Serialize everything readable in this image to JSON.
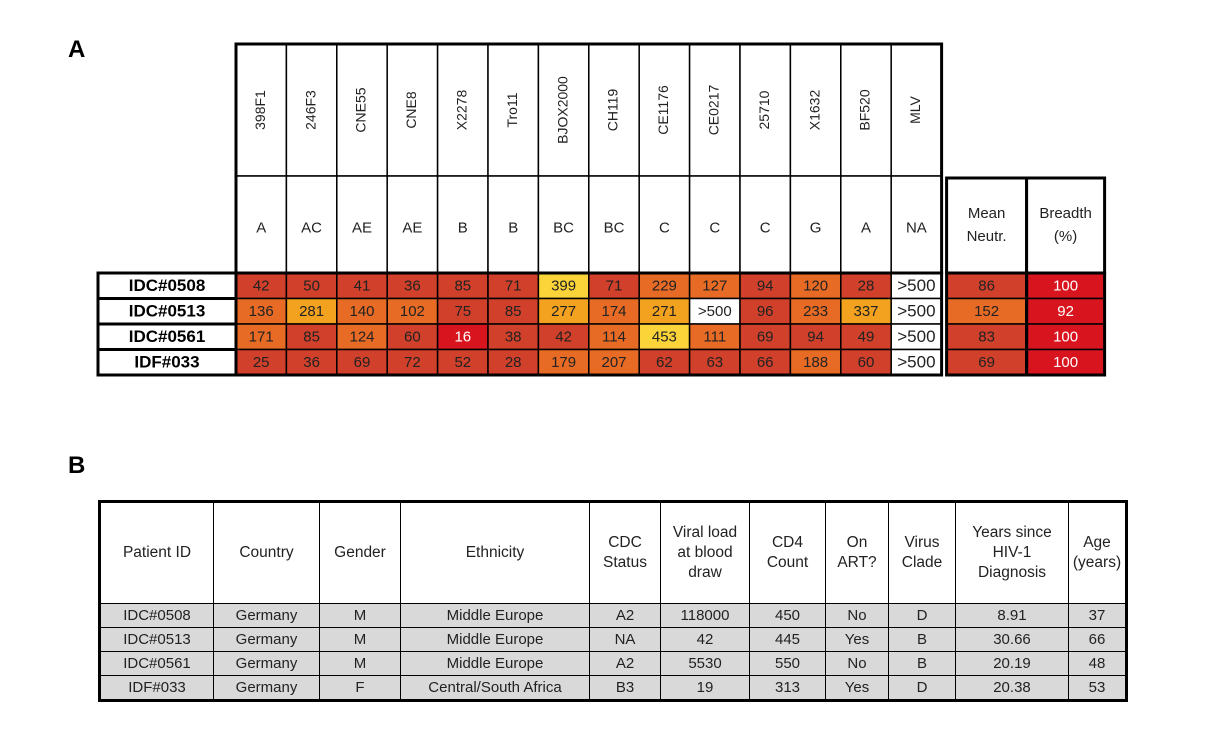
{
  "panels": {
    "a": "A",
    "b": "B"
  },
  "chart_data": {
    "type": "heatmap",
    "title": "",
    "viruses": [
      "398F1",
      "246F3",
      "CNE55",
      "CNE8",
      "X2278",
      "Tro11",
      "BJOX2000",
      "CH119",
      "CE1176",
      "CE0217",
      "25710",
      "X1632",
      "BF520",
      "MLV"
    ],
    "clades": [
      "A",
      "AC",
      "AE",
      "AE",
      "B",
      "B",
      "BC",
      "BC",
      "C",
      "C",
      "C",
      "G",
      "A",
      "NA"
    ],
    "summary_headers": [
      "Mean\nNeutr.",
      "Breadth\n(%)"
    ],
    "rows": [
      {
        "label": "IDC#0508",
        "values": [
          "42",
          "50",
          "41",
          "36",
          "85",
          "71",
          "399",
          "71",
          "229",
          "127",
          "94",
          "120",
          "28",
          ">500"
        ],
        "mean": "86",
        "breadth": "100"
      },
      {
        "label": "IDC#0513",
        "values": [
          "136",
          "281",
          "140",
          "102",
          "75",
          "85",
          "277",
          "174",
          "271",
          ">500",
          "96",
          "233",
          "337",
          ">500"
        ],
        "mean": "152",
        "breadth": "92"
      },
      {
        "label": "IDC#0561",
        "values": [
          "171",
          "85",
          "124",
          "60",
          "16",
          "38",
          "42",
          "114",
          "453",
          "111",
          "69",
          "94",
          "49",
          ">500"
        ],
        "mean": "83",
        "breadth": "100"
      },
      {
        "label": "IDF#033",
        "values": [
          "25",
          "36",
          "69",
          "72",
          "52",
          "28",
          "179",
          "207",
          "62",
          "63",
          "66",
          "188",
          "60",
          ">500"
        ],
        "mean": "69",
        "breadth": "100"
      }
    ],
    "color_scale": {
      "very_high": "#d8151f",
      "high": "#d0402a",
      "mid": "#e86b25",
      "low": "#f2a21f",
      "lowest": "#fbd43a",
      "none": "#ffffff"
    }
  },
  "table_b": {
    "headers": [
      "Patient ID",
      "Country",
      "Gender",
      "Ethnicity",
      "CDC\nStatus",
      "Viral load\nat blood\ndraw",
      "CD4\nCount",
      "On\nART?",
      "Virus\nClade",
      "Years since\nHIV-1\nDiagnosis",
      "Age\n(years)"
    ],
    "rows": [
      [
        "IDC#0508",
        "Germany",
        "M",
        "Middle Europe",
        "A2",
        "118000",
        "450",
        "No",
        "D",
        "8.91",
        "37"
      ],
      [
        "IDC#0513",
        "Germany",
        "M",
        "Middle Europe",
        "NA",
        "42",
        "445",
        "Yes",
        "B",
        "30.66",
        "66"
      ],
      [
        "IDC#0561",
        "Germany",
        "M",
        "Middle Europe",
        "A2",
        "5530",
        "550",
        "No",
        "B",
        "20.19",
        "48"
      ],
      [
        "IDF#033",
        "Germany",
        "F",
        "Central/South Africa",
        "B3",
        "19",
        "313",
        "Yes",
        "D",
        "20.38",
        "53"
      ]
    ]
  }
}
